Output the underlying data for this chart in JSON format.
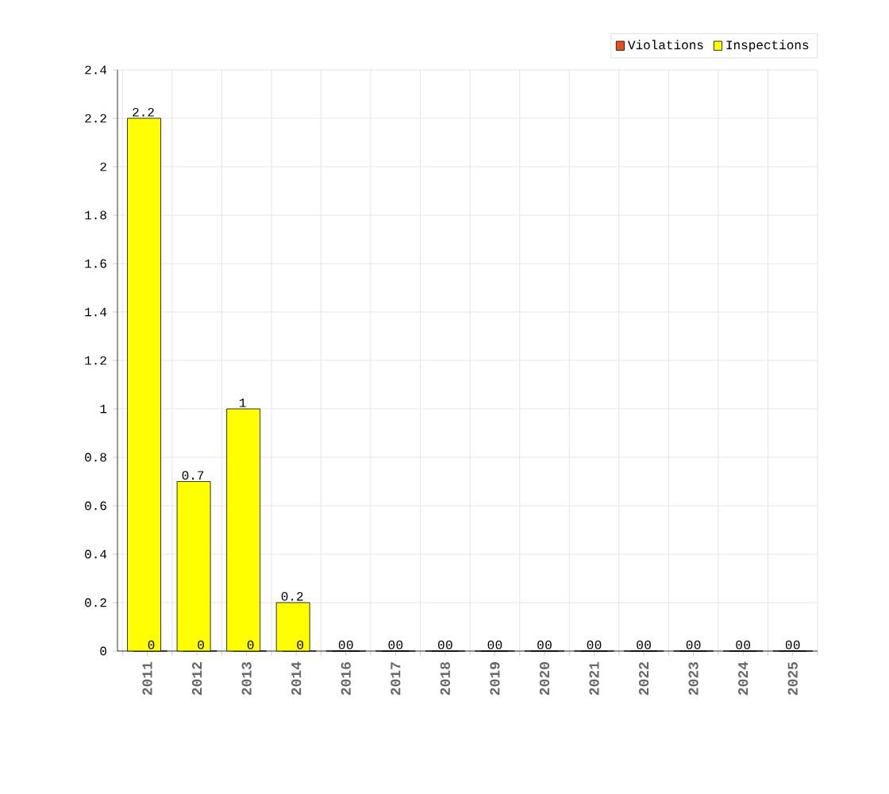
{
  "chart_data": {
    "type": "bar",
    "categories": [
      "2011",
      "2012",
      "2013",
      "2014",
      "2016",
      "2017",
      "2018",
      "2019",
      "2020",
      "2021",
      "2022",
      "2023",
      "2024",
      "2025"
    ],
    "series": [
      {
        "name": "Violations",
        "color": "#e0501e",
        "values": [
          0,
          0,
          0,
          0,
          0,
          0,
          0,
          0,
          0,
          0,
          0,
          0,
          0,
          0
        ]
      },
      {
        "name": "Inspections",
        "color": "#ffff00",
        "values": [
          2.2,
          0.7,
          1,
          0.2,
          0,
          0,
          0,
          0,
          0,
          0,
          0,
          0,
          0,
          0
        ]
      }
    ],
    "ylim": [
      0,
      2.4
    ],
    "yticks": [
      0,
      0.2,
      0.4,
      0.6,
      0.8,
      1,
      1.2,
      1.4,
      1.6,
      1.8,
      2,
      2.2,
      2.4
    ],
    "grid": true,
    "legend": "top right",
    "data_labels": true
  }
}
